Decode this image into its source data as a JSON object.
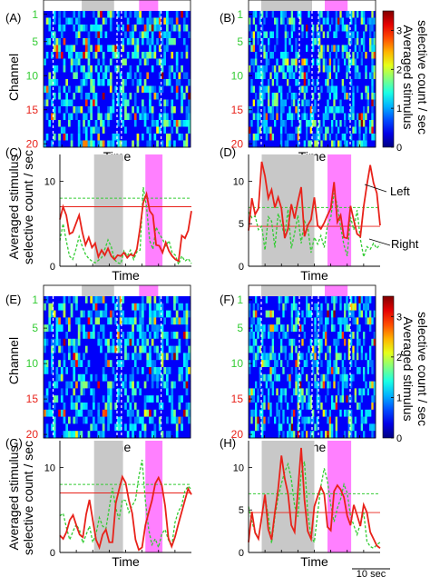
{
  "figure": {
    "channel_label": "Channel",
    "time_label": "Time",
    "ylabel_line1": "Averaged stimulus",
    "ylabel_line2": "selective count / sec",
    "colorbar_label_line1": "Averaged stimulus",
    "colorbar_label_line2": "selective count / sec",
    "colorbar_ticks": [
      "0",
      "1",
      "2",
      "3"
    ],
    "scale_bar": "10 sec",
    "legend_left": "Left",
    "legend_right": "Right",
    "channel_ticks": [
      "1",
      "5",
      "10",
      "15",
      "20"
    ],
    "colors": {
      "gray_band": "#c8c8c8",
      "pink_band": "#ff80ff",
      "left_line": "#e8221a",
      "right_line": "#33cc33",
      "green_tick": "#33cc33",
      "red_tick": "#e8221a"
    }
  },
  "chart_data": [
    {
      "panel": "(A)",
      "type": "heatmap",
      "rows": 20,
      "cols": 60,
      "seed": 11,
      "vmin": 0,
      "vmax": 3.5,
      "ylabel": "Channel",
      "xlabel": "Time",
      "gray_band": [
        0.26,
        0.48
      ],
      "pink_band": [
        0.65,
        0.78
      ],
      "dashed": [
        0.065,
        0.5,
        0.53,
        0.8
      ]
    },
    {
      "panel": "(B)",
      "type": "heatmap",
      "rows": 20,
      "cols": 60,
      "seed": 23,
      "vmin": 0,
      "vmax": 3.5,
      "xlabel": "Time",
      "gray_band": [
        0.1,
        0.5
      ],
      "pink_band": [
        0.6,
        0.78
      ],
      "dashed": [
        0.1,
        0.4,
        0.5,
        0.55,
        0.8
      ],
      "colorbar": true
    },
    {
      "panel": "(C)",
      "type": "line",
      "xlabel": "Time",
      "ylim": [
        0,
        14
      ],
      "yticks": [
        0,
        10
      ],
      "gray_band": [
        0.26,
        0.48
      ],
      "pink_band": [
        0.65,
        0.78
      ],
      "left_mean": 7.0,
      "right_mean": 8.0,
      "left": [
        5.5,
        7,
        6,
        3.8,
        4,
        5,
        6,
        4,
        2.5,
        3.4,
        2.2,
        2.7,
        1.1,
        1.9,
        1.3,
        2.1,
        1.2,
        0.8,
        1.3,
        1.2,
        1.6,
        1,
        1.4,
        1.2,
        2,
        4.5,
        7.5,
        8.5,
        6.5,
        6,
        2.5,
        2.4,
        1.6,
        2.8,
        1.8,
        1.2,
        0.8,
        0.6,
        3.6,
        3.3,
        4.2,
        6.5
      ],
      "right": [
        3,
        5,
        3,
        1.2,
        0.8,
        2,
        3.5,
        2.3,
        1.4,
        0.9,
        0.6,
        0.4,
        0.7,
        1,
        2,
        3.1,
        2.3,
        0.8,
        0.4,
        0.3,
        1.8,
        1.2,
        1.9,
        0.8,
        1.7,
        1.9,
        9.3,
        7,
        3,
        2,
        4.6,
        3.8,
        3.2,
        2.4,
        3,
        1.6,
        1.3,
        0.2,
        1.2,
        0.6,
        0.9,
        0.3
      ]
    },
    {
      "panel": "(D)",
      "type": "line",
      "xlabel": "Time",
      "ylim": [
        0,
        14
      ],
      "yticks": [
        0,
        5,
        10
      ],
      "gray_band": [
        0.1,
        0.5
      ],
      "pink_band": [
        0.6,
        0.78
      ],
      "left_mean": 4.7,
      "right_mean": 6.9,
      "left": [
        4.2,
        8,
        6.1,
        6.8,
        12.3,
        10.6,
        8,
        9,
        6.9,
        8.1,
        6.8,
        3.3,
        4.4,
        7.3,
        5.6,
        7.6,
        9.3,
        3.5,
        4.8,
        5.5,
        8.1,
        4.8,
        4.4,
        5.1,
        6,
        6.8,
        9.9,
        5.2,
        6,
        3.4,
        3.3,
        7.1,
        5.4,
        3.8,
        3.5,
        7,
        9.6,
        11.9,
        9.8,
        8.6,
        4.8
      ],
      "right": [
        6.4,
        5.7,
        5.9,
        4.3,
        4.7,
        1.9,
        5.8,
        5.3,
        2.2,
        6.2,
        4.9,
        3.5,
        6.7,
        2.1,
        3.9,
        6,
        2.7,
        5.3,
        4.6,
        1.6,
        3.4,
        2.6,
        3.6,
        2.2,
        4.8,
        5.7,
        8.6,
        7.2,
        4.6,
        2.5,
        1.2,
        5.8,
        4.3,
        6.6,
        3.2,
        1.1,
        2.3,
        2,
        2.7,
        2.1,
        2.6
      ]
    },
    {
      "panel": "(E)",
      "type": "heatmap",
      "rows": 20,
      "cols": 60,
      "seed": 37,
      "vmin": 0,
      "vmax": 3.5,
      "ylabel": "Channel",
      "xlabel": "Time",
      "gray_band": [
        0.26,
        0.48
      ],
      "pink_band": [
        0.65,
        0.78
      ],
      "dashed": [
        0.065,
        0.5,
        0.53,
        0.8
      ]
    },
    {
      "panel": "(F)",
      "type": "heatmap",
      "rows": 20,
      "cols": 60,
      "seed": 53,
      "vmin": 0,
      "vmax": 3.5,
      "xlabel": "Time",
      "gray_band": [
        0.1,
        0.5
      ],
      "pink_band": [
        0.6,
        0.78
      ],
      "dashed": [
        0.1,
        0.4,
        0.5,
        0.55,
        0.8
      ],
      "colorbar": true
    },
    {
      "panel": "(G)",
      "type": "line",
      "xlabel": "Time",
      "ylim": [
        0,
        14
      ],
      "yticks": [
        0,
        10
      ],
      "gray_band": [
        0.26,
        0.48
      ],
      "pink_band": [
        0.65,
        0.78
      ],
      "left_mean": 7.0,
      "right_mean": 8.0,
      "left": [
        2,
        1.6,
        2.4,
        3.8,
        4.4,
        3.2,
        2.1,
        1.8,
        4.5,
        6.2,
        3.8,
        1.5,
        0.6,
        2.1,
        2.7,
        1.2,
        1.2,
        5.8,
        7.4,
        8.9,
        8.2,
        6.1,
        4.6,
        1.5,
        0.3,
        0.6,
        3.2,
        4.7,
        6.1,
        8.1,
        8.8,
        7.9,
        5.5,
        1.7,
        0.7,
        1.8,
        3.3,
        4.7,
        6.1,
        7.5,
        6.8
      ],
      "right": [
        4.3,
        4.6,
        2.9,
        1.5,
        2.5,
        3.3,
        2.6,
        1.1,
        2.1,
        3.1,
        1.2,
        2.2,
        4.1,
        3.1,
        2.8,
        5.2,
        7.6,
        5.2,
        3.9,
        6.2,
        6.1,
        4.7,
        5.5,
        6.2,
        8.9,
        10.9,
        6.1,
        2.7,
        0.9,
        1.6,
        0.6,
        2.2,
        2.7,
        1.5,
        0.7,
        3.5,
        4.8,
        5.5,
        7.2,
        7.8,
        7.4
      ]
    },
    {
      "panel": "(H)",
      "type": "line",
      "xlabel": "Time",
      "ylim": [
        0,
        14
      ],
      "yticks": [
        0,
        5,
        10
      ],
      "gray_band": [
        0.1,
        0.5
      ],
      "pink_band": [
        0.6,
        0.78
      ],
      "left_mean": 4.7,
      "right_mean": 6.9,
      "left": [
        1.2,
        4.8,
        2.3,
        1.6,
        4.2,
        6.8,
        2.7,
        1.5,
        4.7,
        7.5,
        11.4,
        8.7,
        6.9,
        3.2,
        2.4,
        7.2,
        12.3,
        6.2,
        2.5,
        1.6,
        5.4,
        6.6,
        7.7,
        6.9,
        3,
        2.6,
        7.2,
        7.9,
        7.4,
        6.5,
        4.3,
        3.2,
        5.6,
        4.4,
        3.1,
        5.6,
        4.7,
        2.4,
        1.6,
        0.8,
        0.5
      ],
      "right": [
        5.4,
        3.6,
        2.4,
        1.7,
        4.2,
        6.5,
        4.3,
        1.1,
        4.2,
        6.5,
        8.1,
        9.5,
        10.4,
        8.6,
        5.5,
        4.2,
        9.3,
        10.7,
        4.6,
        1.9,
        1.2,
        4.6,
        7.8,
        9.9,
        8.4,
        5.6,
        3.6,
        5.2,
        6.3,
        8,
        7,
        4.3,
        3.2,
        2.1,
        3.4,
        4.7,
        1.3,
        0.7,
        0.5,
        0.9,
        1.2
      ]
    }
  ]
}
